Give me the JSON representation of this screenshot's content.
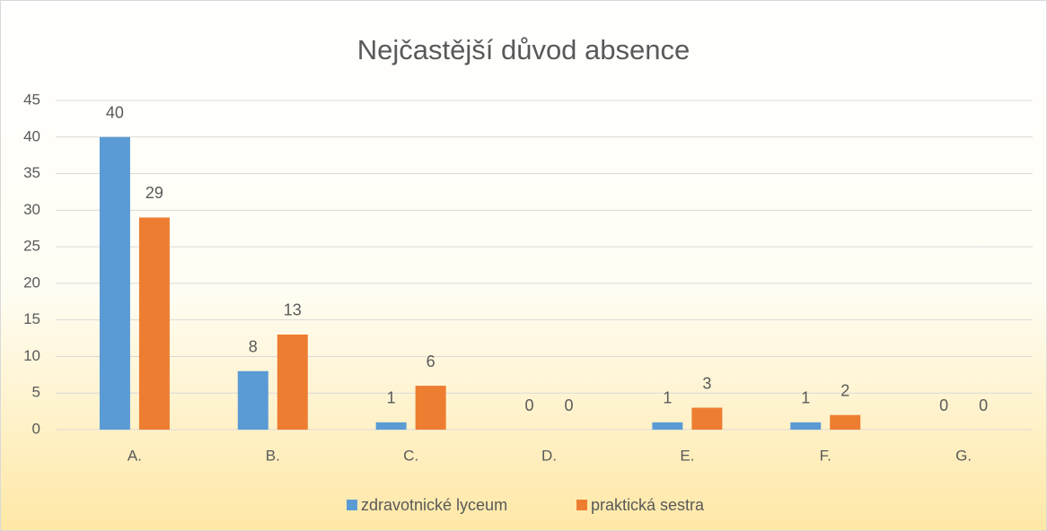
{
  "chart_data": {
    "type": "bar",
    "title": "Nejčastější důvod absence",
    "categories": [
      "A.",
      "B.",
      "C.",
      "D.",
      "E.",
      "F.",
      "G."
    ],
    "series": [
      {
        "name": "zdravotnické lyceum",
        "color": "#5b9bd5",
        "values": [
          40,
          8,
          1,
          0,
          1,
          1,
          0
        ]
      },
      {
        "name": "praktická sestra",
        "color": "#ed7d31",
        "values": [
          29,
          13,
          6,
          0,
          3,
          2,
          0
        ]
      }
    ],
    "ylim": [
      0,
      45
    ],
    "yticks": [
      0,
      5,
      10,
      15,
      20,
      25,
      30,
      35,
      40,
      45
    ],
    "grid": true,
    "legend": "bottom"
  }
}
